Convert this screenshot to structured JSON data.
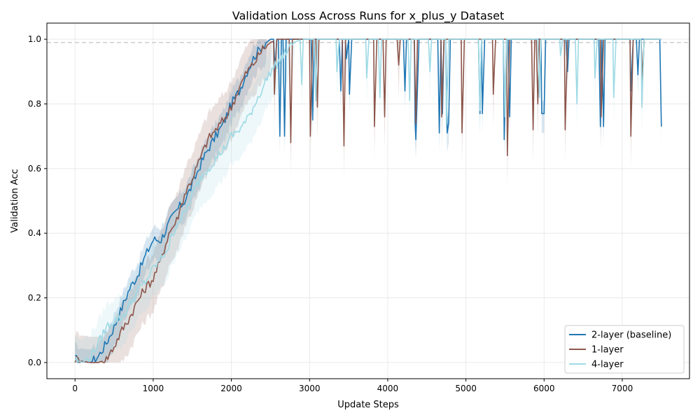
{
  "chart_data": {
    "type": "line",
    "title": "Validation Loss Across Runs for x_plus_y Dataset",
    "xlabel": "Update Steps",
    "ylabel": "Validation Acc",
    "xlim": [
      -360,
      7860
    ],
    "ylim": [
      -0.05,
      1.05
    ],
    "xticks": [
      0,
      1000,
      2000,
      3000,
      4000,
      5000,
      6000,
      7000
    ],
    "xtick_labels": [
      "0",
      "1000",
      "2000",
      "3000",
      "4000",
      "5000",
      "6000",
      "7000"
    ],
    "yticks": [
      0.0,
      0.2,
      0.4,
      0.6,
      0.8,
      1.0
    ],
    "ytick_labels": [
      "0.0",
      "0.2",
      "0.4",
      "0.6",
      "0.8",
      "1.0"
    ],
    "grid": true,
    "reference_line": {
      "y": 0.99,
      "style": "dashed",
      "color": "#cccccc"
    },
    "legend_position": "lower right",
    "series": [
      {
        "name": "2-layer (baseline)",
        "color": "#1f77b4",
        "shade_color": "#1f77b4",
        "points": [
          [
            0,
            0.01
          ],
          [
            100,
            0.003
          ],
          [
            200,
            0.0
          ],
          [
            300,
            0.02
          ],
          [
            400,
            0.06
          ],
          [
            500,
            0.11
          ],
          [
            600,
            0.17
          ],
          [
            700,
            0.23
          ],
          [
            800,
            0.27
          ],
          [
            900,
            0.33
          ],
          [
            1000,
            0.38
          ],
          [
            1100,
            0.38
          ],
          [
            1200,
            0.43
          ],
          [
            1300,
            0.47
          ],
          [
            1400,
            0.5
          ],
          [
            1500,
            0.55
          ],
          [
            1600,
            0.61
          ],
          [
            1700,
            0.66
          ],
          [
            1800,
            0.7
          ],
          [
            1900,
            0.74
          ],
          [
            2000,
            0.8
          ],
          [
            2100,
            0.84
          ],
          [
            2200,
            0.9
          ],
          [
            2300,
            0.95
          ],
          [
            2400,
            0.98
          ],
          [
            2500,
            1.0
          ],
          [
            7500,
            1.0
          ]
        ],
        "dips": [
          [
            2560,
            0.9
          ],
          [
            2620,
            0.7
          ],
          [
            2680,
            0.7
          ],
          [
            3040,
            0.75
          ],
          [
            3400,
            0.84
          ],
          [
            3470,
            0.94
          ],
          [
            3510,
            0.83
          ],
          [
            4220,
            0.84
          ],
          [
            4350,
            0.74
          ],
          [
            4360,
            0.69
          ],
          [
            4660,
            0.71
          ],
          [
            4700,
            0.77
          ],
          [
            4760,
            0.71
          ],
          [
            4780,
            0.74
          ],
          [
            5180,
            0.77
          ],
          [
            5210,
            0.77
          ],
          [
            5490,
            0.69
          ],
          [
            5560,
            0.76
          ],
          [
            5970,
            0.77
          ],
          [
            6000,
            0.77
          ],
          [
            6300,
            0.9
          ],
          [
            6720,
            0.73
          ],
          [
            6760,
            0.73
          ],
          [
            7110,
            0.84
          ],
          [
            7200,
            0.89
          ],
          [
            7500,
            0.73
          ]
        ],
        "band": 0.04
      },
      {
        "name": "1-layer",
        "color": "#8c564b",
        "shade_color": "#8c564b",
        "points": [
          [
            0,
            0.01
          ],
          [
            100,
            0.003
          ],
          [
            200,
            0.0
          ],
          [
            300,
            0.0
          ],
          [
            400,
            0.01
          ],
          [
            500,
            0.05
          ],
          [
            600,
            0.1
          ],
          [
            700,
            0.14
          ],
          [
            800,
            0.19
          ],
          [
            900,
            0.23
          ],
          [
            1000,
            0.26
          ],
          [
            1100,
            0.32
          ],
          [
            1200,
            0.4
          ],
          [
            1300,
            0.44
          ],
          [
            1400,
            0.52
          ],
          [
            1500,
            0.57
          ],
          [
            1600,
            0.63
          ],
          [
            1700,
            0.69
          ],
          [
            1800,
            0.72
          ],
          [
            1900,
            0.75
          ],
          [
            2000,
            0.79
          ],
          [
            2100,
            0.85
          ],
          [
            2200,
            0.9
          ],
          [
            2300,
            0.93
          ],
          [
            2400,
            0.97
          ],
          [
            2500,
            0.99
          ],
          [
            2600,
            1.0
          ],
          [
            7500,
            1.0
          ]
        ],
        "dips": [
          [
            2550,
            0.83
          ],
          [
            2760,
            0.68
          ],
          [
            3010,
            0.7
          ],
          [
            3100,
            0.79
          ],
          [
            3440,
            0.67
          ],
          [
            3830,
            0.73
          ],
          [
            3960,
            0.76
          ],
          [
            4140,
            0.92
          ],
          [
            4360,
            0.74
          ],
          [
            4690,
            0.76
          ],
          [
            4950,
            0.71
          ],
          [
            5350,
            0.83
          ],
          [
            5530,
            0.64
          ],
          [
            5860,
            0.72
          ],
          [
            5920,
            0.8
          ],
          [
            6270,
            0.72
          ],
          [
            6730,
            0.76
          ],
          [
            7110,
            0.7
          ],
          [
            7260,
            0.87
          ]
        ],
        "band": 0.08
      },
      {
        "name": "4-layer",
        "color": "#9edae5",
        "shade_color": "#9edae5",
        "points": [
          [
            0,
            0.01
          ],
          [
            100,
            0.0
          ],
          [
            200,
            0.02
          ],
          [
            300,
            0.06
          ],
          [
            400,
            0.11
          ],
          [
            500,
            0.13
          ],
          [
            600,
            0.14
          ],
          [
            700,
            0.18
          ],
          [
            800,
            0.22
          ],
          [
            900,
            0.25
          ],
          [
            1000,
            0.29
          ],
          [
            1100,
            0.32
          ],
          [
            1200,
            0.36
          ],
          [
            1300,
            0.43
          ],
          [
            1400,
            0.46
          ],
          [
            1500,
            0.52
          ],
          [
            1600,
            0.57
          ],
          [
            1700,
            0.6
          ],
          [
            1800,
            0.63
          ],
          [
            1900,
            0.66
          ],
          [
            2000,
            0.7
          ],
          [
            2100,
            0.72
          ],
          [
            2200,
            0.75
          ],
          [
            2300,
            0.8
          ],
          [
            2400,
            0.85
          ],
          [
            2500,
            0.9
          ],
          [
            2600,
            0.93
          ],
          [
            2700,
            0.96
          ],
          [
            2800,
            0.99
          ],
          [
            2900,
            1.0
          ],
          [
            7500,
            1.0
          ]
        ],
        "dips": [
          [
            2900,
            0.86
          ],
          [
            3080,
            0.81
          ],
          [
            3350,
            0.9
          ],
          [
            3730,
            0.88
          ],
          [
            3900,
            0.82
          ],
          [
            4280,
            0.81
          ],
          [
            4540,
            0.9
          ],
          [
            4750,
            0.74
          ],
          [
            5180,
            0.78
          ],
          [
            5500,
            0.76
          ],
          [
            5940,
            0.82
          ],
          [
            6210,
            0.95
          ],
          [
            6420,
            0.8
          ],
          [
            6650,
            0.88
          ],
          [
            6890,
            0.82
          ],
          [
            7250,
            0.79
          ]
        ],
        "band": 0.07
      }
    ]
  }
}
